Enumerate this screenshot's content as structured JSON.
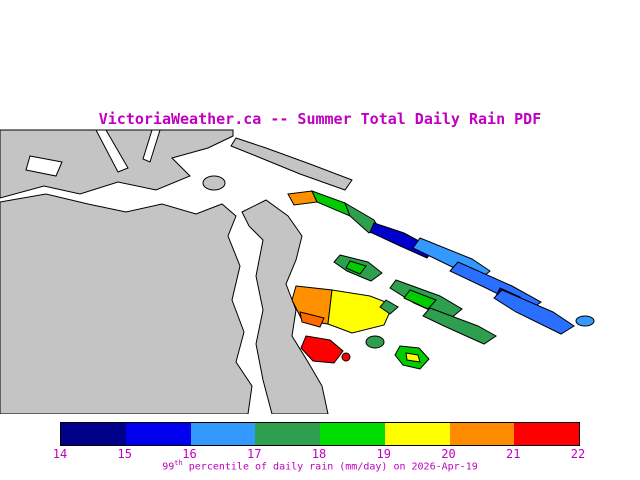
{
  "title": "VictoriaWeather.ca -- Summer Total Daily Rain PDF",
  "caption": {
    "value": "99",
    "superscript": "th",
    "rest": " percentile of daily rain (mm/day) on 2026-Apr-19"
  },
  "text_color": "#c000c0",
  "map": {
    "land_color": "#c4c4c4",
    "water_color": "#ffffff",
    "coast_color": "#000000",
    "island_colors": {
      "orange": "#ff9000",
      "deep_orange": "#ff6a00",
      "yellow": "#ffff00",
      "green_bright": "#00cc00",
      "green_dark": "#2e9e4f",
      "blue_dark": "#0000cd",
      "blue_mid": "#2a6fff",
      "blue_light": "#3399ff",
      "red": "#ff0000"
    }
  },
  "colorbar": {
    "segments": [
      "#00008b",
      "#0000ee",
      "#3399ff",
      "#2e9e4f",
      "#00dd00",
      "#ffff00",
      "#ff8c00",
      "#ff0000"
    ],
    "ticks": [
      "14",
      "15",
      "16",
      "17",
      "18",
      "19",
      "20",
      "21",
      "22"
    ]
  },
  "chart_data": {
    "type": "heatmap",
    "title": "VictoriaWeather.ca -- Summer Total Daily Rain PDF",
    "variable": "99th percentile of daily rain",
    "units": "mm/day",
    "date": "2026-Apr-19",
    "colorbar_range": [
      14,
      22
    ],
    "colorbar_ticks": [
      14,
      15,
      16,
      17,
      18,
      19,
      20,
      21,
      22
    ],
    "colorbar_colors": [
      "#00008b",
      "#0000ee",
      "#3399ff",
      "#2e9e4f",
      "#00dd00",
      "#ffff00",
      "#ff8c00",
      "#ff0000"
    ],
    "regions": [
      {
        "area": "outer northeast island chain",
        "approx_value_mm_day": "14-17",
        "color": "blue shades"
      },
      {
        "area": "mid-channel islands",
        "approx_value_mm_day": "17-19",
        "color": "green shades"
      },
      {
        "area": "central island east side",
        "approx_value_mm_day": "19-20",
        "color": "yellow"
      },
      {
        "area": "central island west side",
        "approx_value_mm_day": "20-21",
        "color": "orange"
      },
      {
        "area": "southern small islands",
        "approx_value_mm_day": "21-22",
        "color": "red"
      },
      {
        "area": "mainland / large land areas",
        "approx_value_mm_day": "no data",
        "color": "gray"
      }
    ]
  }
}
